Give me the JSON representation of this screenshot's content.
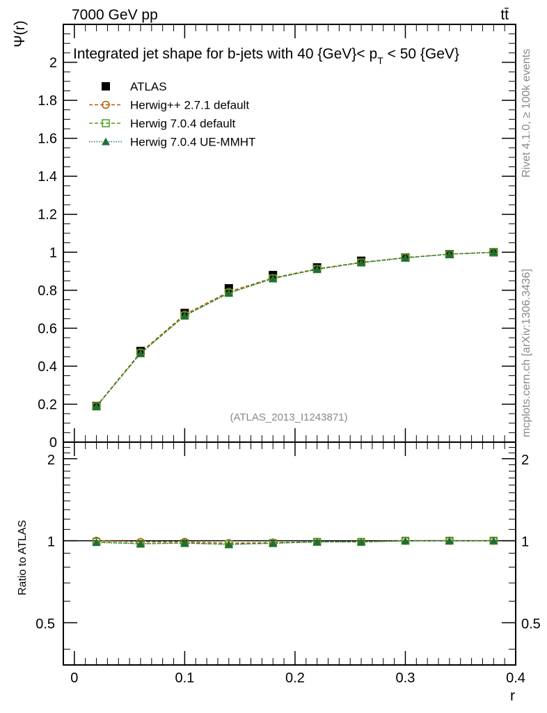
{
  "header": {
    "energy_label": "7000 GeV pp",
    "process_label": "tt̄"
  },
  "side_labels": {
    "rivet": "Rivet 4.1.0, ≥ 100k events",
    "mcplots": "mcplots.cern.ch [arXiv:1306.3436]"
  },
  "chart_data": [
    {
      "type": "line",
      "title": "Integrated jet shape for b-jets with 40 {GeV}< p_T < 50 {GeV}",
      "title_main": "Integrated jet shape for b-jets with 40 {GeV}< p",
      "title_sub": "T",
      "title_tail": " < 50 {GeV}",
      "ylabel": "Ψ(r)",
      "watermark": "(ATLAS_2013_I1243871)",
      "xlim": [
        -0.01,
        0.4
      ],
      "ylim": [
        0,
        2.2
      ],
      "x_ticks": [
        0,
        0.1,
        0.2,
        0.3,
        0.4
      ],
      "y_ticks": [
        0,
        0.2,
        0.4,
        0.6,
        0.8,
        1,
        1.2,
        1.4,
        1.6,
        1.8,
        2
      ],
      "y_tick_labels": [
        "0",
        "0.2",
        "0.4",
        "0.6",
        "0.8",
        "1",
        "1.2",
        "1.4",
        "1.6",
        "1.8",
        "2"
      ],
      "x": [
        0.02,
        0.06,
        0.1,
        0.14,
        0.18,
        0.22,
        0.26,
        0.3,
        0.34,
        0.38
      ],
      "series": [
        {
          "name": "ATLAS",
          "color": "#000000",
          "marker": "square-filled",
          "line": "none",
          "values": [
            0.19,
            0.48,
            0.68,
            0.81,
            0.88,
            0.92,
            0.955,
            0.972,
            0.99,
            1.0
          ]
        },
        {
          "name": "Herwig++ 2.7.1 default",
          "color": "#b35900",
          "marker": "circle-open",
          "line": "dashed",
          "values": [
            0.19,
            0.473,
            0.672,
            0.792,
            0.865,
            0.913,
            0.947,
            0.972,
            0.99,
            1.0
          ]
        },
        {
          "name": "Herwig 7.0.4 default",
          "color": "#4c9e1a",
          "marker": "square-open",
          "line": "dashed",
          "values": [
            0.188,
            0.468,
            0.666,
            0.786,
            0.862,
            0.911,
            0.946,
            0.971,
            0.99,
            1.0
          ]
        },
        {
          "name": "Herwig 7.0.4 UE-MMHT",
          "color": "#1f6e3a",
          "marker": "triangle-filled",
          "line": "dotted",
          "values": [
            0.187,
            0.467,
            0.665,
            0.785,
            0.861,
            0.91,
            0.945,
            0.97,
            0.99,
            1.0
          ]
        }
      ],
      "legend_position": "top-left"
    },
    {
      "type": "line",
      "ylabel": "Ratio to ATLAS",
      "xlabel": "r",
      "xlim": [
        -0.01,
        0.4
      ],
      "ylim": [
        0.35,
        2.3
      ],
      "x_ticks": [
        0,
        0.1,
        0.2,
        0.3,
        0.4
      ],
      "x_tick_labels": [
        "0",
        "0.1",
        "0.2",
        "0.3",
        "0.4"
      ],
      "y_ticks": [
        0.5,
        1,
        2
      ],
      "y_tick_labels": [
        "0.5",
        "1",
        "2"
      ],
      "x": [
        0.02,
        0.06,
        0.1,
        0.14,
        0.18,
        0.22,
        0.26,
        0.3,
        0.34,
        0.38
      ],
      "series": [
        {
          "name": "Herwig++ 2.7.1 default",
          "color": "#b35900",
          "marker": "circle-open",
          "line": "dashed",
          "values": [
            1.0,
            0.99,
            0.99,
            0.98,
            0.985,
            0.99,
            0.99,
            1.0,
            1.0,
            1.0
          ]
        },
        {
          "name": "Herwig 7.0.4 default",
          "color": "#4c9e1a",
          "marker": "square-open",
          "line": "dashed",
          "values": [
            0.99,
            0.975,
            0.98,
            0.97,
            0.98,
            0.99,
            0.99,
            1.0,
            1.0,
            1.0
          ]
        },
        {
          "name": "Herwig 7.0.4 UE-MMHT",
          "color": "#1f6e3a",
          "marker": "triangle-filled",
          "line": "dotted",
          "values": [
            0.985,
            0.975,
            0.98,
            0.97,
            0.978,
            0.99,
            0.99,
            0.998,
            1.0,
            1.0
          ]
        }
      ]
    }
  ]
}
